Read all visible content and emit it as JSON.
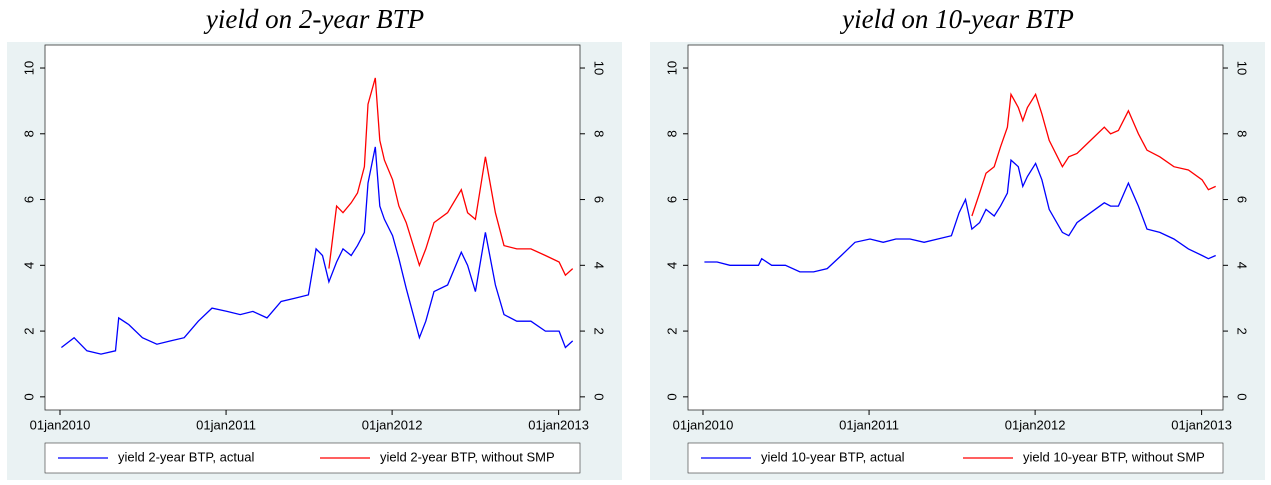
{
  "chart_data": [
    {
      "type": "line",
      "title": "yield on 2-year BTP",
      "x": [
        "2010-01-04",
        "2010-02-01",
        "2010-03-01",
        "2010-04-01",
        "2010-05-03",
        "2010-05-10",
        "2010-06-01",
        "2010-07-01",
        "2010-08-02",
        "2010-09-01",
        "2010-10-01",
        "2010-11-01",
        "2010-12-01",
        "2011-01-03",
        "2011-02-01",
        "2011-03-01",
        "2011-04-01",
        "2011-05-02",
        "2011-06-01",
        "2011-07-01",
        "2011-07-18",
        "2011-08-01",
        "2011-08-15",
        "2011-09-01",
        "2011-09-15",
        "2011-10-03",
        "2011-10-17",
        "2011-11-01",
        "2011-11-09",
        "2011-11-25",
        "2011-12-05",
        "2011-12-15",
        "2012-01-02",
        "2012-01-16",
        "2012-02-01",
        "2012-03-01",
        "2012-03-15",
        "2012-04-02",
        "2012-05-02",
        "2012-06-01",
        "2012-06-15",
        "2012-07-02",
        "2012-07-24",
        "2012-08-15",
        "2012-09-03",
        "2012-10-01",
        "2012-11-01",
        "2012-12-03",
        "2013-01-02",
        "2013-01-16",
        "2013-02-01"
      ],
      "series": [
        {
          "name": "yield 2-year BTP, actual",
          "color": "#0000ff",
          "values": [
            1.5,
            1.8,
            1.4,
            1.3,
            1.4,
            2.4,
            2.2,
            1.8,
            1.6,
            1.7,
            1.8,
            2.3,
            2.7,
            2.6,
            2.5,
            2.6,
            2.4,
            2.9,
            3.0,
            3.1,
            4.5,
            4.3,
            3.5,
            4.1,
            4.5,
            4.3,
            4.6,
            5.0,
            6.5,
            7.6,
            5.8,
            5.4,
            4.9,
            4.2,
            3.3,
            1.8,
            2.3,
            3.2,
            3.4,
            4.4,
            4.0,
            3.2,
            5.0,
            3.4,
            2.5,
            2.3,
            2.3,
            2.0,
            2.0,
            1.5,
            1.7
          ]
        },
        {
          "name": "yield 2-year BTP, without SMP",
          "color": "#ff0000",
          "values": [
            null,
            null,
            null,
            null,
            null,
            null,
            null,
            null,
            null,
            null,
            null,
            null,
            null,
            null,
            null,
            null,
            null,
            null,
            null,
            null,
            null,
            null,
            3.9,
            5.8,
            5.6,
            5.9,
            6.2,
            7.0,
            8.9,
            9.7,
            7.8,
            7.2,
            6.6,
            5.8,
            5.3,
            4.0,
            4.5,
            5.3,
            5.6,
            6.3,
            5.6,
            5.4,
            7.3,
            5.6,
            4.6,
            4.5,
            4.5,
            4.3,
            4.1,
            3.7,
            3.9
          ]
        }
      ],
      "xlim": [
        "2009-11-29",
        "2013-02-17"
      ],
      "xticks": [
        {
          "value": "2010-01-01",
          "label": "01jan2010"
        },
        {
          "value": "2011-01-01",
          "label": "01jan2011"
        },
        {
          "value": "2012-01-01",
          "label": "01jan2012"
        },
        {
          "value": "2013-01-01",
          "label": "01jan2013"
        }
      ],
      "ylim": [
        -0.4,
        10.7
      ],
      "yticks": [
        0,
        2,
        4,
        6,
        8,
        10
      ],
      "y2lim": [
        -0.4,
        10.7
      ],
      "y2ticks": [
        0,
        2,
        4,
        6,
        8,
        10
      ]
    },
    {
      "type": "line",
      "title": "yield on 10-year BTP",
      "x": [
        "2010-01-04",
        "2010-02-01",
        "2010-03-01",
        "2010-04-01",
        "2010-05-03",
        "2010-05-10",
        "2010-06-01",
        "2010-07-01",
        "2010-08-02",
        "2010-09-01",
        "2010-10-01",
        "2010-11-01",
        "2010-12-01",
        "2011-01-03",
        "2011-02-01",
        "2011-03-01",
        "2011-04-01",
        "2011-05-02",
        "2011-06-01",
        "2011-07-01",
        "2011-07-18",
        "2011-08-01",
        "2011-08-15",
        "2011-09-01",
        "2011-09-15",
        "2011-10-03",
        "2011-10-17",
        "2011-11-01",
        "2011-11-09",
        "2011-11-25",
        "2011-12-05",
        "2011-12-15",
        "2012-01-02",
        "2012-01-16",
        "2012-02-01",
        "2012-03-01",
        "2012-03-15",
        "2012-04-02",
        "2012-05-02",
        "2012-06-01",
        "2012-06-15",
        "2012-07-02",
        "2012-07-24",
        "2012-08-15",
        "2012-09-03",
        "2012-10-01",
        "2012-11-01",
        "2012-12-03",
        "2013-01-02",
        "2013-01-16",
        "2013-02-01"
      ],
      "series": [
        {
          "name": "yield 10-year BTP, actual",
          "color": "#0000ff",
          "values": [
            4.1,
            4.1,
            4.0,
            4.0,
            4.0,
            4.2,
            4.0,
            4.0,
            3.8,
            3.8,
            3.9,
            4.3,
            4.7,
            4.8,
            4.7,
            4.8,
            4.8,
            4.7,
            4.8,
            4.9,
            5.6,
            6.0,
            5.1,
            5.3,
            5.7,
            5.5,
            5.8,
            6.2,
            7.2,
            7.0,
            6.4,
            6.7,
            7.1,
            6.6,
            5.7,
            5.0,
            4.9,
            5.3,
            5.6,
            5.9,
            5.8,
            5.8,
            6.5,
            5.8,
            5.1,
            5.0,
            4.8,
            4.5,
            4.3,
            4.2,
            4.3
          ]
        },
        {
          "name": "yield 10-year BTP, without SMP",
          "color": "#ff0000",
          "values": [
            null,
            null,
            null,
            null,
            null,
            null,
            null,
            null,
            null,
            null,
            null,
            null,
            null,
            null,
            null,
            null,
            null,
            null,
            null,
            null,
            null,
            null,
            5.5,
            6.2,
            6.8,
            7.0,
            7.6,
            8.2,
            9.2,
            8.8,
            8.4,
            8.8,
            9.2,
            8.6,
            7.8,
            7.0,
            7.3,
            7.4,
            7.8,
            8.2,
            8.0,
            8.1,
            8.7,
            8.0,
            7.5,
            7.3,
            7.0,
            6.9,
            6.6,
            6.3,
            6.4
          ]
        }
      ],
      "xlim": [
        "2009-11-29",
        "2013-02-17"
      ],
      "xticks": [
        {
          "value": "2010-01-01",
          "label": "01jan2010"
        },
        {
          "value": "2011-01-01",
          "label": "01jan2011"
        },
        {
          "value": "2012-01-01",
          "label": "01jan2012"
        },
        {
          "value": "2013-01-01",
          "label": "01jan2013"
        }
      ],
      "ylim": [
        -0.4,
        10.7
      ],
      "yticks": [
        0,
        2,
        4,
        6,
        8,
        10
      ],
      "y2lim": [
        -0.4,
        10.7
      ],
      "y2ticks": [
        0,
        2,
        4,
        6,
        8,
        10
      ]
    }
  ]
}
